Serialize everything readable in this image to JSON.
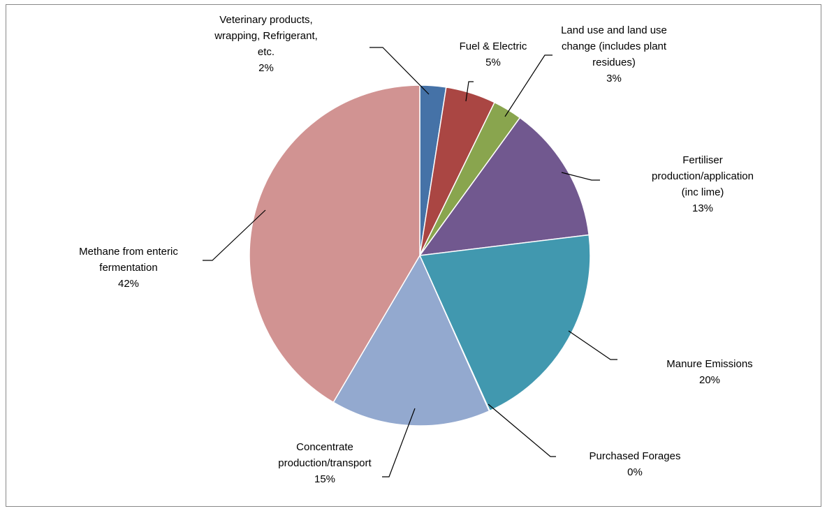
{
  "chart_data": {
    "type": "pie",
    "title": "",
    "slices": [
      {
        "label_lines": [
          "Veterinary products,",
          "wrapping, Refrigerant,",
          "etc."
        ],
        "percent_label": "2%",
        "value": 2.5,
        "color": "#4572a7"
      },
      {
        "label_lines": [
          "Fuel & Electric"
        ],
        "percent_label": "5%",
        "value": 4.8,
        "color": "#aa4643"
      },
      {
        "label_lines": [
          "Land use and land use",
          "change (includes plant",
          "residues)"
        ],
        "percent_label": "3%",
        "value": 2.8,
        "color": "#89a54e"
      },
      {
        "label_lines": [
          "Fertiliser",
          "production/application",
          "(inc lime)"
        ],
        "percent_label": "13%",
        "value": 13.2,
        "color": "#71588f"
      },
      {
        "label_lines": [
          "Manure Emissions"
        ],
        "percent_label": "20%",
        "value": 20.4,
        "color": "#4198af"
      },
      {
        "label_lines": [
          "Purchased Forages"
        ],
        "percent_label": "0%",
        "value": 0.05,
        "color": "#db843d"
      },
      {
        "label_lines": [
          "Concentrate",
          "production/transport"
        ],
        "percent_label": "15%",
        "value": 15.3,
        "color": "#93a9cf"
      },
      {
        "label_lines": [
          "Methane from enteric",
          "fermentation"
        ],
        "percent_label": "42%",
        "value": 41.95,
        "color": "#d19392"
      }
    ],
    "legend": "none",
    "label_style": "outside labels with leader lines"
  }
}
